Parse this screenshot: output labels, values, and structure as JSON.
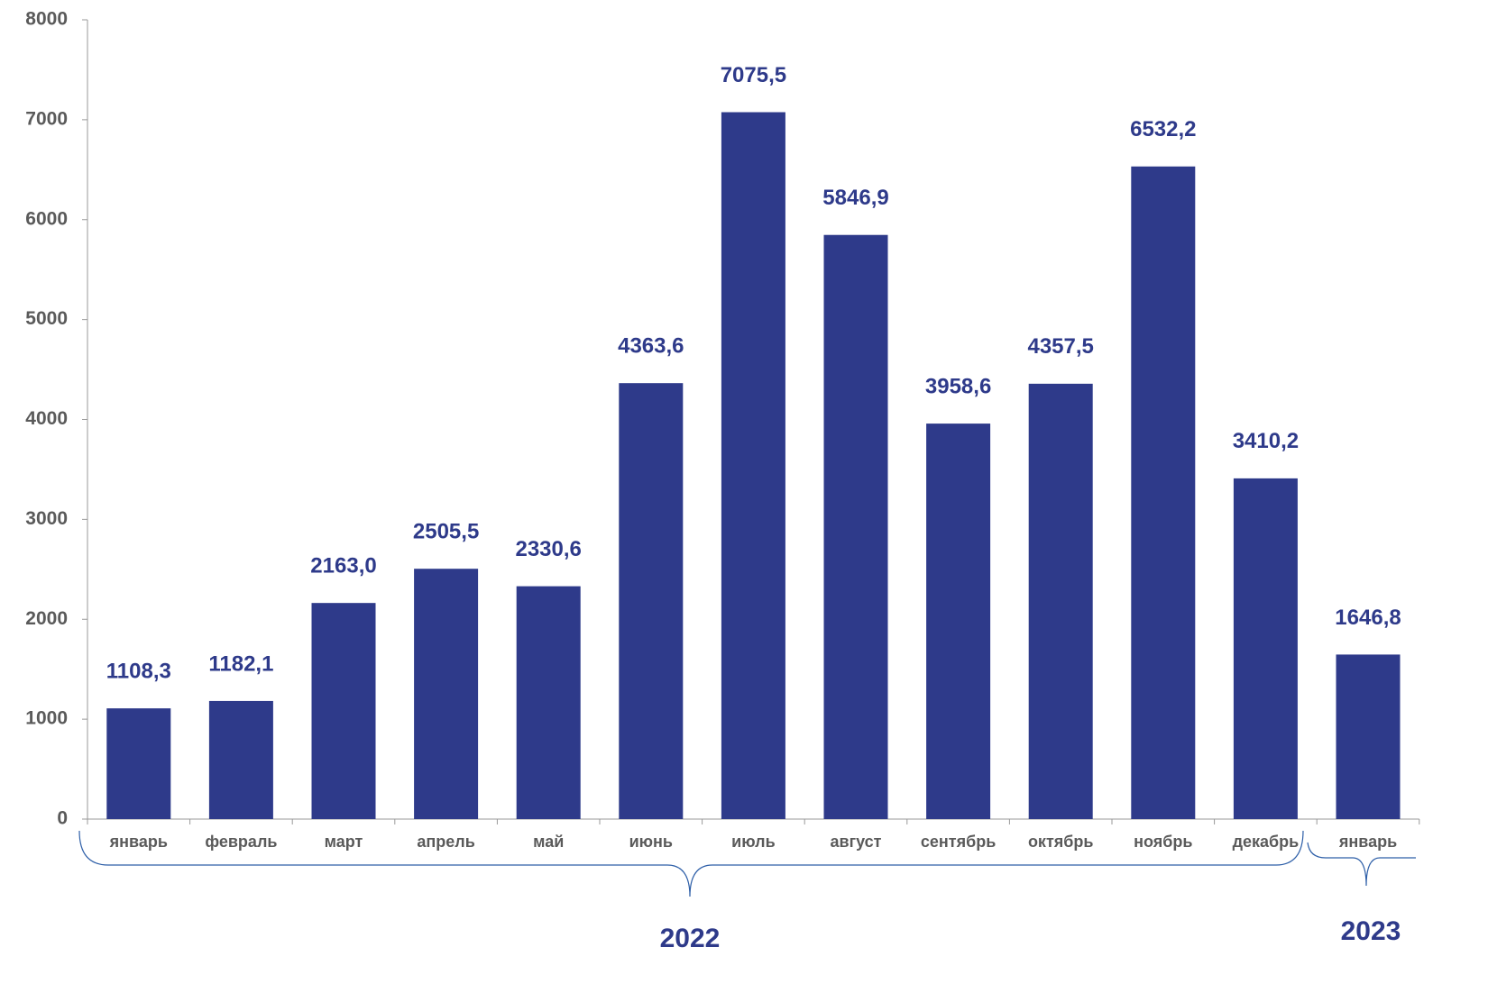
{
  "chart_data": {
    "type": "bar",
    "categories": [
      "январь",
      "февраль",
      "март",
      "апрель",
      "май",
      "июнь",
      "июль",
      "август",
      "сентябрь",
      "октябрь",
      "ноябрь",
      "декабрь",
      "январь"
    ],
    "values": [
      1108.3,
      1182.1,
      2163.0,
      2505.5,
      2330.6,
      4363.6,
      7075.5,
      5846.9,
      3958.6,
      4357.5,
      6532.2,
      3410.2,
      1646.8
    ],
    "value_labels": [
      "1108,3",
      "1182,1",
      "2163,0",
      "2505,5",
      "2330,6",
      "4363,6",
      "7075,5",
      "5846,9",
      "3958,6",
      "4357,5",
      "6532,2",
      "3410,2",
      "1646,8"
    ],
    "color": "#2e3a8a",
    "ylim": [
      0,
      8000
    ],
    "yticks": [
      0,
      1000,
      2000,
      3000,
      4000,
      5000,
      6000,
      7000,
      8000
    ],
    "grid": false,
    "annotations": [
      "2022",
      "2023"
    ]
  }
}
